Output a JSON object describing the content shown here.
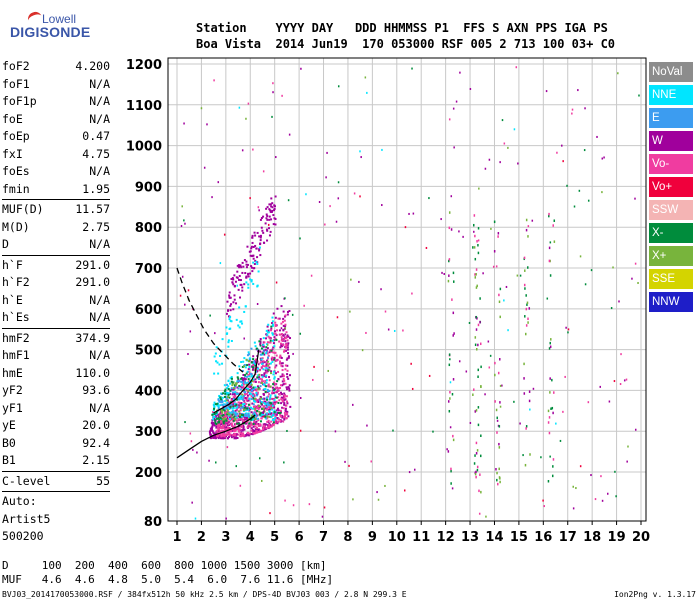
{
  "logo": {
    "line1": "Lowell",
    "line2": "DIGISONDE"
  },
  "header": {
    "row1": "Station    YYYY DAY   DDD HHMMSS P1  FFS S AXN PPS IGA PS",
    "row2": "Boa Vista  2014 Jun19  170 053000 RSF 005 2 713 100 03+ C0"
  },
  "params": {
    "group1": [
      {
        "label": "foF2",
        "value": "4.200"
      },
      {
        "label": "foF1",
        "value": "N/A"
      },
      {
        "label": "foF1p",
        "value": "N/A"
      },
      {
        "label": "foE",
        "value": "N/A"
      },
      {
        "label": "foEp",
        "value": "0.47"
      },
      {
        "label": "fxI",
        "value": "4.75"
      },
      {
        "label": "foEs",
        "value": "N/A"
      },
      {
        "label": "fmin",
        "value": "1.95"
      }
    ],
    "group2": [
      {
        "label": "MUF(D)",
        "value": "11.57"
      },
      {
        "label": "M(D)",
        "value": "2.75"
      },
      {
        "label": "D",
        "value": "N/A"
      }
    ],
    "group3": [
      {
        "label": "h`F",
        "value": "291.0"
      },
      {
        "label": "h`F2",
        "value": "291.0"
      },
      {
        "label": "h`E",
        "value": "N/A"
      },
      {
        "label": "h`Es",
        "value": "N/A"
      }
    ],
    "group4": [
      {
        "label": "hmF2",
        "value": "374.9"
      },
      {
        "label": "hmF1",
        "value": "N/A"
      },
      {
        "label": "hmE",
        "value": "110.0"
      },
      {
        "label": "yF2",
        "value": "93.6"
      },
      {
        "label": "yF1",
        "value": "N/A"
      },
      {
        "label": "yE",
        "value": "20.0"
      },
      {
        "label": "B0",
        "value": "92.4"
      },
      {
        "label": "B1",
        "value": "2.15"
      }
    ],
    "group5": [
      {
        "label": "C-level",
        "value": "55"
      }
    ],
    "auto": [
      "Auto:",
      "Artist5",
      "500200"
    ]
  },
  "legend": [
    {
      "label": "NoVal",
      "color": "#8c8c8c"
    },
    {
      "label": "NNE",
      "color": "#00e5ff"
    },
    {
      "label": "E",
      "color": "#3c9cf0"
    },
    {
      "label": "W",
      "color": "#a0009c"
    },
    {
      "label": "Vo-",
      "color": "#f03ca0"
    },
    {
      "label": "Vo+",
      "color": "#f0003c"
    },
    {
      "label": "SSW",
      "color": "#f4b4b4"
    },
    {
      "label": "X-",
      "color": "#008c3c"
    },
    {
      "label": "X+",
      "color": "#78b43c"
    },
    {
      "label": "SSE",
      "color": "#d4d400"
    },
    {
      "label": "NNW",
      "color": "#1e1ec8"
    }
  ],
  "footer": {
    "row1": "D     100  200  400  600  800 1000 1500 3000 [km]",
    "row2": "MUF   4.6  4.6  4.8  5.0  5.4  6.0  7.6 11.6 [MHz]",
    "file": "BVJ03_2014170053000.RSF / 384fx512h 50 kHz 2.5 km / DPS-4D BVJ03 003 / 2.8 N 299.3 E",
    "version": "Ion2Png v. 1.3.17"
  },
  "chart_data": {
    "type": "scatter",
    "xlim": [
      1,
      20
    ],
    "ylim": [
      80,
      1200
    ],
    "xticks": [
      1,
      2,
      3,
      4,
      5,
      6,
      7,
      8,
      9,
      10,
      11,
      12,
      13,
      14,
      15,
      16,
      17,
      18,
      19,
      20
    ],
    "yticks": [
      80,
      200,
      300,
      400,
      500,
      600,
      700,
      800,
      900,
      1000,
      1100,
      1200
    ],
    "grid": true,
    "legend_placement": "right",
    "trace_solid": {
      "x": [
        1.0,
        1.5,
        2.0,
        2.5,
        3.0,
        3.5,
        4.0,
        4.2
      ],
      "y": [
        235,
        255,
        275,
        290,
        300,
        312,
        330,
        340
      ]
    },
    "trace_dashed": {
      "x": [
        1.0,
        1.2,
        1.5,
        1.8,
        2.1,
        2.5,
        2.9,
        3.3,
        3.7
      ],
      "y": [
        700,
        665,
        620,
        585,
        550,
        515,
        490,
        465,
        445
      ]
    },
    "profile_curve": {
      "x": [
        2.5,
        2.8,
        3.1,
        3.4,
        3.7,
        4.0,
        4.2,
        4.35
      ],
      "y": [
        345,
        355,
        365,
        378,
        400,
        420,
        440,
        500
      ]
    },
    "clusters": [
      {
        "color": "#a0009c",
        "x0": 2.3,
        "x1": 5.6,
        "y0": 285,
        "y1": 610,
        "n": 700,
        "shape": "lower"
      },
      {
        "color": "#f03ca0",
        "x0": 2.6,
        "x1": 5.5,
        "y0": 290,
        "y1": 590,
        "n": 500,
        "shape": "lower"
      },
      {
        "color": "#00e5ff",
        "x0": 2.4,
        "x1": 5.0,
        "y0": 330,
        "y1": 600,
        "n": 220,
        "shape": "lower"
      },
      {
        "color": "#3c9cf0",
        "x0": 2.6,
        "x1": 4.8,
        "y0": 340,
        "y1": 520,
        "n": 100,
        "shape": "lower"
      },
      {
        "color": "#008c3c",
        "x0": 2.4,
        "x1": 5.2,
        "y0": 320,
        "y1": 560,
        "n": 120,
        "shape": "lower"
      },
      {
        "color": "#78b43c",
        "x0": 2.6,
        "x1": 4.9,
        "y0": 330,
        "y1": 480,
        "n": 60,
        "shape": "lower"
      },
      {
        "color": "#a0009c",
        "x0": 3.0,
        "x1": 5.0,
        "y0": 610,
        "y1": 850,
        "n": 150,
        "shape": "upper"
      },
      {
        "color": "#00e5ff",
        "x0": 2.4,
        "x1": 4.4,
        "y0": 440,
        "y1": 720,
        "n": 50,
        "shape": "upper"
      }
    ],
    "sparse": [
      {
        "color": "#a0009c",
        "n": 110
      },
      {
        "color": "#f03ca0",
        "n": 50
      },
      {
        "color": "#008c3c",
        "n": 45
      },
      {
        "color": "#78b43c",
        "n": 30
      },
      {
        "color": "#f0003c",
        "n": 25
      },
      {
        "color": "#00e5ff",
        "n": 15
      }
    ],
    "columns": [
      12.2,
      13.2,
      13.3,
      14.1,
      15.3,
      16.3
    ]
  }
}
